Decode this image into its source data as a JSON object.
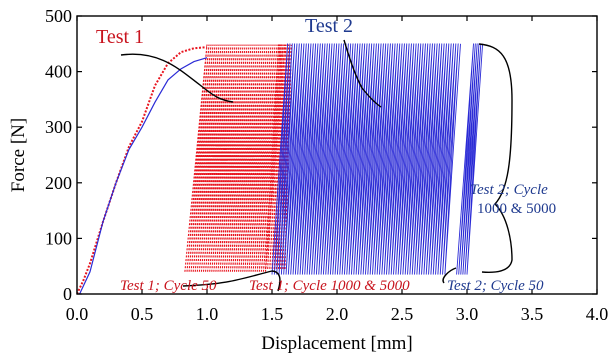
{
  "chart_data": {
    "type": "line",
    "xlabel": "Displacement [mm]",
    "ylabel": "Force [N]",
    "xlim": [
      0.0,
      4.0
    ],
    "ylim": [
      0,
      500
    ],
    "xticks": [
      "0.0",
      "0.5",
      "1.0",
      "1.5",
      "2.0",
      "2.5",
      "3.0",
      "3.5",
      "4.0"
    ],
    "yticks": [
      "0",
      "100",
      "200",
      "300",
      "400",
      "500"
    ],
    "grid": false,
    "colors": {
      "test1": "#e8141e",
      "test2": "#2b2bd6",
      "test1_text": "#c8141e",
      "test2_text": "#1f3a8f"
    },
    "series": [
      {
        "name": "Test 1",
        "loading_curve": {
          "x": [
            0.0,
            0.05,
            0.1,
            0.2,
            0.3,
            0.4,
            0.5,
            0.6,
            0.7,
            0.8,
            0.9,
            1.0
          ],
          "y": [
            0,
            25,
            55,
            130,
            200,
            265,
            310,
            375,
            415,
            435,
            442,
            444
          ]
        },
        "cycle_band_1": {
          "x_start": [
            0.83,
            1.45
          ],
          "x_end": [
            1.0,
            1.6
          ],
          "y_min": 40,
          "y_max": 448,
          "cycles": 40
        },
        "cycle_band_2": {
          "x_start": [
            1.45,
            1.6
          ],
          "x_end": [
            1.55,
            1.65
          ],
          "y_min": 45,
          "y_max": 448,
          "cycles": 10
        }
      },
      {
        "name": "Test 2",
        "loading_curve": {
          "x": [
            0.02,
            0.1,
            0.2,
            0.3,
            0.4,
            0.5,
            0.6,
            0.7,
            0.8,
            0.9,
            1.0
          ],
          "y": [
            0,
            40,
            130,
            200,
            260,
            300,
            345,
            385,
            405,
            418,
            425
          ]
        },
        "cycle_band_1": {
          "x_start": [
            1.5,
            2.83
          ],
          "x_end": [
            1.62,
            2.95
          ],
          "y_min": 35,
          "y_max": 450,
          "cycles": 75
        },
        "cycle_band_2": {
          "x_start": [
            2.92,
            3.0
          ],
          "x_end": [
            3.05,
            3.12
          ],
          "y_min": 35,
          "y_max": 450,
          "cycles": 6
        }
      }
    ],
    "legend": {
      "test1_label": "Test 1",
      "test2_label": "Test 2"
    },
    "annotations": {
      "t1_cycle50": "Test 1; Cycle 50",
      "t1_cycle1000": "Test 1; Cycle 1000 & 5000",
      "t2_cycle50": "Test 2; Cycle 50",
      "t2_cycle_line1": "Test 2; Cycle",
      "t2_cycle_line2": "1000 & 5000"
    }
  }
}
